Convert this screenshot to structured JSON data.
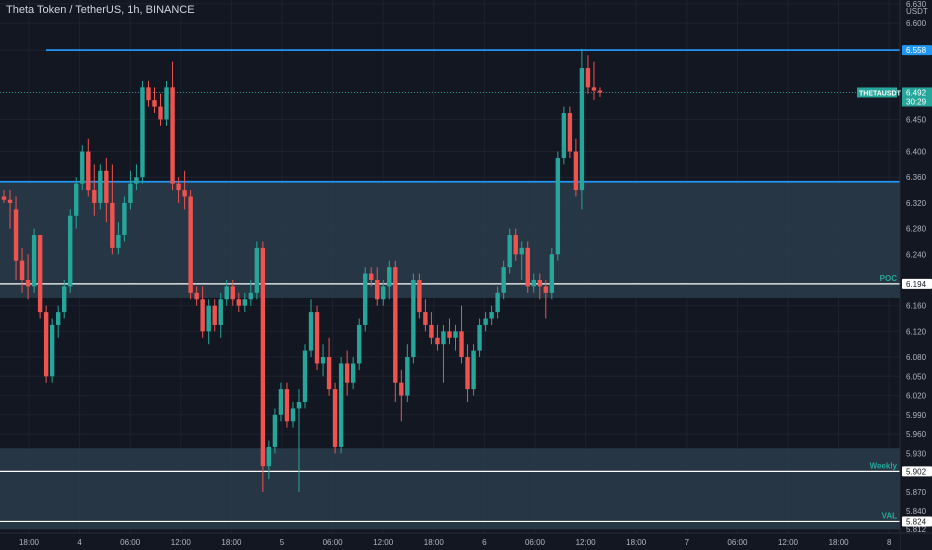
{
  "header": {
    "symbol": "Theta Token / TetherUS",
    "interval": "1h",
    "exchange": "BINANCE"
  },
  "price_axis": {
    "currency": "USDT",
    "ticks": [
      "6.630",
      "6.600",
      "6.558",
      "6.492",
      "6.450",
      "6.400",
      "6.360",
      "6.320",
      "6.280",
      "6.240",
      "6.194",
      "6.160",
      "6.120",
      "6.080",
      "6.050",
      "6.020",
      "5.990",
      "5.960",
      "5.930",
      "5.902",
      "5.870",
      "5.840",
      "5.824",
      "5.812"
    ]
  },
  "time_axis": {
    "ticks": [
      "18:00",
      "4",
      "06:00",
      "12:00",
      "18:00",
      "5",
      "06:00",
      "12:00",
      "18:00",
      "6",
      "06:00",
      "12:00",
      "18:00",
      "7",
      "06:00",
      "12:00",
      "18:00",
      "8"
    ]
  },
  "tags": {
    "last_price": "6.492",
    "ticker": "THETAUSDT",
    "countdown": "30:29",
    "resistance": "6.558",
    "poc_value": "6.194",
    "poc_label": "POC",
    "weekly_value": "5.902",
    "weekly_label": "Weekly",
    "val_value": "5.824",
    "val_label": "VAL"
  },
  "colors": {
    "background": "#131722",
    "up": "#26a69a",
    "down": "#ef5350",
    "resistance": "#2196f3",
    "zone": "#2a3c4a",
    "text": "#b2b5be",
    "level_line": "#ffffff"
  },
  "chart_data": {
    "type": "candlestick",
    "symbol": "THETAUSDT",
    "interval": "1h",
    "y_axis": {
      "min": 5.806,
      "max": 6.636,
      "side": "right"
    },
    "zones": [
      {
        "from": 6.172,
        "to": 6.353
      },
      {
        "from": 5.812,
        "to": 5.938
      }
    ],
    "levels": [
      {
        "price": 6.558,
        "color": "#2196f3"
      },
      {
        "price": 6.353,
        "color": "#2196f3"
      },
      {
        "price": 6.194,
        "color": "#ffffff",
        "label": "POC"
      },
      {
        "price": 5.902,
        "color": "#ffffff",
        "label": "Weekly"
      },
      {
        "price": 5.824,
        "color": "#ffffff",
        "label": "VAL"
      }
    ],
    "candles": [
      {
        "o": 6.33,
        "h": 6.34,
        "l": 6.32,
        "c": 6.325
      },
      {
        "o": 6.325,
        "h": 6.34,
        "l": 6.28,
        "c": 6.32
      },
      {
        "o": 6.31,
        "h": 6.33,
        "l": 6.2,
        "c": 6.23
      },
      {
        "o": 6.23,
        "h": 6.25,
        "l": 6.18,
        "c": 6.2
      },
      {
        "o": 6.2,
        "h": 6.24,
        "l": 6.17,
        "c": 6.19
      },
      {
        "o": 6.19,
        "h": 6.28,
        "l": 6.18,
        "c": 6.27
      },
      {
        "o": 6.27,
        "h": 6.27,
        "l": 6.14,
        "c": 6.15
      },
      {
        "o": 6.15,
        "h": 6.16,
        "l": 6.04,
        "c": 6.05
      },
      {
        "o": 6.05,
        "h": 6.14,
        "l": 6.04,
        "c": 6.13
      },
      {
        "o": 6.13,
        "h": 6.16,
        "l": 6.11,
        "c": 6.15
      },
      {
        "o": 6.15,
        "h": 6.2,
        "l": 6.14,
        "c": 6.19
      },
      {
        "o": 6.19,
        "h": 6.31,
        "l": 6.18,
        "c": 6.3
      },
      {
        "o": 6.3,
        "h": 6.36,
        "l": 6.28,
        "c": 6.35
      },
      {
        "o": 6.35,
        "h": 6.41,
        "l": 6.34,
        "c": 6.4
      },
      {
        "o": 6.4,
        "h": 6.42,
        "l": 6.33,
        "c": 6.34
      },
      {
        "o": 6.34,
        "h": 6.38,
        "l": 6.3,
        "c": 6.32
      },
      {
        "o": 6.32,
        "h": 6.38,
        "l": 6.31,
        "c": 6.37
      },
      {
        "o": 6.37,
        "h": 6.39,
        "l": 6.29,
        "c": 6.32
      },
      {
        "o": 6.32,
        "h": 6.38,
        "l": 6.24,
        "c": 6.25
      },
      {
        "o": 6.25,
        "h": 6.29,
        "l": 6.24,
        "c": 6.27
      },
      {
        "o": 6.27,
        "h": 6.33,
        "l": 6.26,
        "c": 6.32
      },
      {
        "o": 6.32,
        "h": 6.37,
        "l": 6.31,
        "c": 6.35
      },
      {
        "o": 6.35,
        "h": 6.38,
        "l": 6.34,
        "c": 6.36
      },
      {
        "o": 6.36,
        "h": 6.51,
        "l": 6.35,
        "c": 6.5
      },
      {
        "o": 6.5,
        "h": 6.51,
        "l": 6.47,
        "c": 6.48
      },
      {
        "o": 6.48,
        "h": 6.5,
        "l": 6.46,
        "c": 6.47
      },
      {
        "o": 6.47,
        "h": 6.49,
        "l": 6.44,
        "c": 6.45
      },
      {
        "o": 6.45,
        "h": 6.51,
        "l": 6.44,
        "c": 6.5
      },
      {
        "o": 6.5,
        "h": 6.54,
        "l": 6.34,
        "c": 6.35
      },
      {
        "o": 6.35,
        "h": 6.36,
        "l": 6.32,
        "c": 6.34
      },
      {
        "o": 6.34,
        "h": 6.37,
        "l": 6.31,
        "c": 6.33
      },
      {
        "o": 6.33,
        "h": 6.34,
        "l": 6.17,
        "c": 6.18
      },
      {
        "o": 6.18,
        "h": 6.19,
        "l": 6.16,
        "c": 6.17
      },
      {
        "o": 6.17,
        "h": 6.19,
        "l": 6.11,
        "c": 6.12
      },
      {
        "o": 6.12,
        "h": 6.17,
        "l": 6.1,
        "c": 6.16
      },
      {
        "o": 6.16,
        "h": 6.17,
        "l": 6.12,
        "c": 6.13
      },
      {
        "o": 6.13,
        "h": 6.18,
        "l": 6.11,
        "c": 6.17
      },
      {
        "o": 6.17,
        "h": 6.2,
        "l": 6.16,
        "c": 6.19
      },
      {
        "o": 6.19,
        "h": 6.2,
        "l": 6.16,
        "c": 6.17
      },
      {
        "o": 6.17,
        "h": 6.18,
        "l": 6.15,
        "c": 6.16
      },
      {
        "o": 6.16,
        "h": 6.18,
        "l": 6.15,
        "c": 6.17
      },
      {
        "o": 6.17,
        "h": 6.2,
        "l": 6.16,
        "c": 6.18
      },
      {
        "o": 6.18,
        "h": 6.26,
        "l": 6.17,
        "c": 6.25
      },
      {
        "o": 6.25,
        "h": 6.26,
        "l": 5.87,
        "c": 5.91
      },
      {
        "o": 5.91,
        "h": 5.95,
        "l": 5.89,
        "c": 5.94
      },
      {
        "o": 5.94,
        "h": 6.0,
        "l": 5.93,
        "c": 5.99
      },
      {
        "o": 5.99,
        "h": 6.04,
        "l": 5.98,
        "c": 6.03
      },
      {
        "o": 6.03,
        "h": 6.04,
        "l": 5.97,
        "c": 5.98
      },
      {
        "o": 5.98,
        "h": 6.01,
        "l": 5.97,
        "c": 6.0
      },
      {
        "o": 6.0,
        "h": 6.03,
        "l": 5.87,
        "c": 6.01
      },
      {
        "o": 6.01,
        "h": 6.1,
        "l": 6.0,
        "c": 6.09
      },
      {
        "o": 6.09,
        "h": 6.17,
        "l": 6.08,
        "c": 6.15
      },
      {
        "o": 6.15,
        "h": 6.16,
        "l": 6.06,
        "c": 6.07
      },
      {
        "o": 6.07,
        "h": 6.1,
        "l": 6.05,
        "c": 6.08
      },
      {
        "o": 6.08,
        "h": 6.11,
        "l": 6.02,
        "c": 6.03
      },
      {
        "o": 6.03,
        "h": 6.04,
        "l": 5.93,
        "c": 5.94
      },
      {
        "o": 5.94,
        "h": 6.08,
        "l": 5.93,
        "c": 6.07
      },
      {
        "o": 6.07,
        "h": 6.09,
        "l": 6.02,
        "c": 6.04
      },
      {
        "o": 6.04,
        "h": 6.08,
        "l": 6.03,
        "c": 6.07
      },
      {
        "o": 6.07,
        "h": 6.14,
        "l": 6.06,
        "c": 6.13
      },
      {
        "o": 6.13,
        "h": 6.22,
        "l": 6.12,
        "c": 6.21
      },
      {
        "o": 6.21,
        "h": 6.22,
        "l": 6.19,
        "c": 6.2
      },
      {
        "o": 6.2,
        "h": 6.22,
        "l": 6.16,
        "c": 6.17
      },
      {
        "o": 6.17,
        "h": 6.2,
        "l": 6.16,
        "c": 6.19
      },
      {
        "o": 6.19,
        "h": 6.23,
        "l": 6.17,
        "c": 6.22
      },
      {
        "o": 6.22,
        "h": 6.23,
        "l": 6.01,
        "c": 6.04
      },
      {
        "o": 6.04,
        "h": 6.06,
        "l": 5.98,
        "c": 6.02
      },
      {
        "o": 6.02,
        "h": 6.1,
        "l": 6.01,
        "c": 6.08
      },
      {
        "o": 6.08,
        "h": 6.21,
        "l": 6.07,
        "c": 6.2
      },
      {
        "o": 6.2,
        "h": 6.21,
        "l": 6.14,
        "c": 6.15
      },
      {
        "o": 6.15,
        "h": 6.17,
        "l": 6.12,
        "c": 6.13
      },
      {
        "o": 6.13,
        "h": 6.15,
        "l": 6.1,
        "c": 6.11
      },
      {
        "o": 6.11,
        "h": 6.13,
        "l": 6.09,
        "c": 6.1
      },
      {
        "o": 6.1,
        "h": 6.13,
        "l": 6.04,
        "c": 6.12
      },
      {
        "o": 6.12,
        "h": 6.14,
        "l": 6.1,
        "c": 6.11
      },
      {
        "o": 6.11,
        "h": 6.13,
        "l": 6.09,
        "c": 6.12
      },
      {
        "o": 6.12,
        "h": 6.16,
        "l": 6.07,
        "c": 6.08
      },
      {
        "o": 6.08,
        "h": 6.1,
        "l": 6.01,
        "c": 6.03
      },
      {
        "o": 6.03,
        "h": 6.1,
        "l": 6.02,
        "c": 6.09
      },
      {
        "o": 6.09,
        "h": 6.14,
        "l": 6.08,
        "c": 6.13
      },
      {
        "o": 6.13,
        "h": 6.15,
        "l": 6.12,
        "c": 6.14
      },
      {
        "o": 6.14,
        "h": 6.16,
        "l": 6.13,
        "c": 6.15
      },
      {
        "o": 6.15,
        "h": 6.19,
        "l": 6.14,
        "c": 6.18
      },
      {
        "o": 6.18,
        "h": 6.23,
        "l": 6.17,
        "c": 6.22
      },
      {
        "o": 6.22,
        "h": 6.28,
        "l": 6.21,
        "c": 6.27
      },
      {
        "o": 6.27,
        "h": 6.28,
        "l": 6.23,
        "c": 6.24
      },
      {
        "o": 6.24,
        "h": 6.26,
        "l": 6.2,
        "c": 6.25
      },
      {
        "o": 6.25,
        "h": 6.26,
        "l": 6.18,
        "c": 6.19
      },
      {
        "o": 6.19,
        "h": 6.21,
        "l": 6.18,
        "c": 6.2
      },
      {
        "o": 6.2,
        "h": 6.21,
        "l": 6.17,
        "c": 6.19
      },
      {
        "o": 6.19,
        "h": 6.2,
        "l": 6.14,
        "c": 6.18
      },
      {
        "o": 6.18,
        "h": 6.25,
        "l": 6.17,
        "c": 6.24
      },
      {
        "o": 6.24,
        "h": 6.4,
        "l": 6.23,
        "c": 6.39
      },
      {
        "o": 6.39,
        "h": 6.47,
        "l": 6.38,
        "c": 6.46
      },
      {
        "o": 6.46,
        "h": 6.47,
        "l": 6.39,
        "c": 6.4
      },
      {
        "o": 6.4,
        "h": 6.42,
        "l": 6.33,
        "c": 6.34
      },
      {
        "o": 6.34,
        "h": 6.56,
        "l": 6.31,
        "c": 6.53
      },
      {
        "o": 6.53,
        "h": 6.55,
        "l": 6.49,
        "c": 6.5
      },
      {
        "o": 6.5,
        "h": 6.54,
        "l": 6.48,
        "c": 6.495
      },
      {
        "o": 6.495,
        "h": 6.5,
        "l": 6.485,
        "c": 6.492
      }
    ]
  }
}
